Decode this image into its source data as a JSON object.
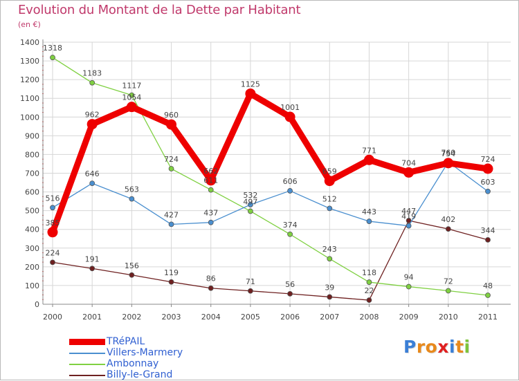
{
  "chart_data": {
    "type": "line",
    "title": "Evolution du Montant de la Dette par Habitant",
    "subtitle": "(en €)",
    "xlabel": "",
    "ylabel": "",
    "categories": [
      "2000",
      "2001",
      "2002",
      "2003",
      "2004",
      "2005",
      "2006",
      "2007",
      "2008",
      "2009",
      "2010",
      "2011"
    ],
    "ylim": [
      0,
      1400
    ],
    "yticks": [
      0,
      100,
      200,
      300,
      400,
      500,
      600,
      700,
      800,
      900,
      1000,
      1100,
      1200,
      1300,
      1400
    ],
    "grid": true,
    "legend_position": "bottom-left",
    "series": [
      {
        "name": "TRéPAIL",
        "color": "#ee0000",
        "values": [
          385,
          962,
          1054,
          960,
          662,
          1125,
          1001,
          659,
          771,
          704,
          754,
          724
        ]
      },
      {
        "name": "Villers-Marmery",
        "color": "#4a8fcf",
        "values": [
          516,
          646,
          563,
          427,
          437,
          532,
          606,
          512,
          443,
          419,
          760,
          603
        ]
      },
      {
        "name": "Ambonnay",
        "color": "#7fd041",
        "values": [
          1318,
          1183,
          1117,
          724,
          611,
          497,
          374,
          243,
          118,
          94,
          72,
          48
        ]
      },
      {
        "name": "Billy-le-Grand",
        "color": "#6e2020",
        "values": [
          224,
          191,
          156,
          119,
          86,
          71,
          56,
          39,
          22,
          447,
          402,
          344
        ]
      }
    ]
  },
  "logo": {
    "letters": [
      "P",
      "r",
      "o",
      "x",
      "i",
      "t",
      "i"
    ],
    "colors": [
      "#3b7fd6",
      "#e8891c",
      "#e8891c",
      "#e02020",
      "#3b7fd6",
      "#e8891c",
      "#7cc43a"
    ]
  }
}
